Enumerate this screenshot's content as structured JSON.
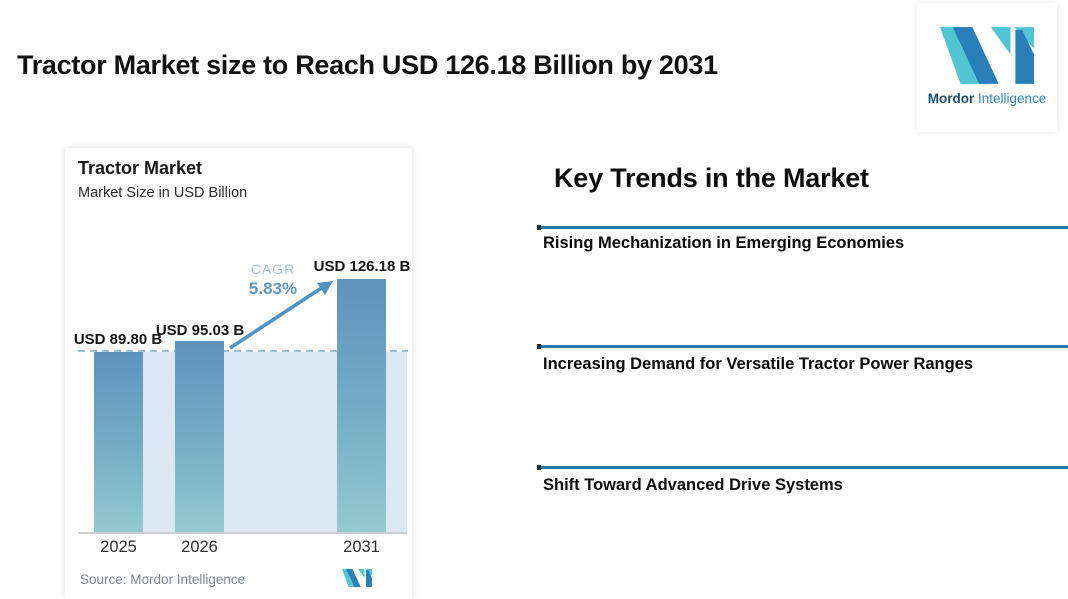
{
  "page": {
    "title": "Tractor Market size to Reach USD 126.18 Billion by 2031"
  },
  "logo": {
    "brand_bold": "Mordor",
    "brand_light": "Intelligence",
    "mark_teal": "#52c5d5",
    "mark_blue": "#2a7fb8"
  },
  "chart_card": {
    "title": "Tractor Market",
    "subtitle": "Market Size in USD Billion",
    "cagr_label": "CAGR",
    "cagr_value": "5.83%",
    "source_label": "Source:",
    "source_value": "Mordor Intelligence"
  },
  "chart_data": {
    "type": "bar",
    "title": "Tractor Market",
    "subtitle": "Market Size in USD Billion",
    "categories": [
      "2025",
      "2026",
      "2031"
    ],
    "values": [
      89.8,
      95.03,
      126.18
    ],
    "value_labels": [
      "USD 89.80 B",
      "USD 95.03 B",
      "USD 126.18 B"
    ],
    "cagr_pct": 5.83,
    "ylim": [
      0,
      135
    ],
    "grid": false,
    "bar_color_top": "#5e93bd",
    "bar_color_bottom": "#93cad0",
    "shade_color": "#dbe7f2",
    "dashed_reference_level": 89.8,
    "annotation": "CAGR 5.83% arrow from 2026 bar to 2031 bar"
  },
  "key_trends": {
    "heading": "Key Trends in the Market",
    "line_color": "#2874a6",
    "items": [
      "Rising Mechanization in Emerging Economies",
      "Increasing Demand for Versatile Tractor Power Ranges",
      "Shift Toward Advanced Drive Systems"
    ]
  }
}
